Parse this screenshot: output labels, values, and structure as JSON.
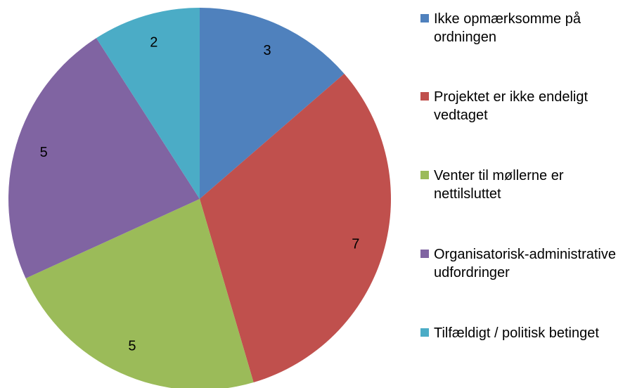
{
  "chart_data": {
    "type": "pie",
    "categories": [
      "Ikke opmærksomme på ordningen",
      "Projektet er ikke endeligt vedtaget",
      "Venter til møllerne er nettilsluttet",
      "Organisatorisk-administrative udfordringer",
      "Tilfældigt / politisk betinget"
    ],
    "values": [
      3,
      7,
      5,
      5,
      2
    ],
    "colors": [
      "#4f81bd",
      "#c0504d",
      "#9bbb59",
      "#8064a2",
      "#4bacc6"
    ],
    "legend": "right"
  }
}
